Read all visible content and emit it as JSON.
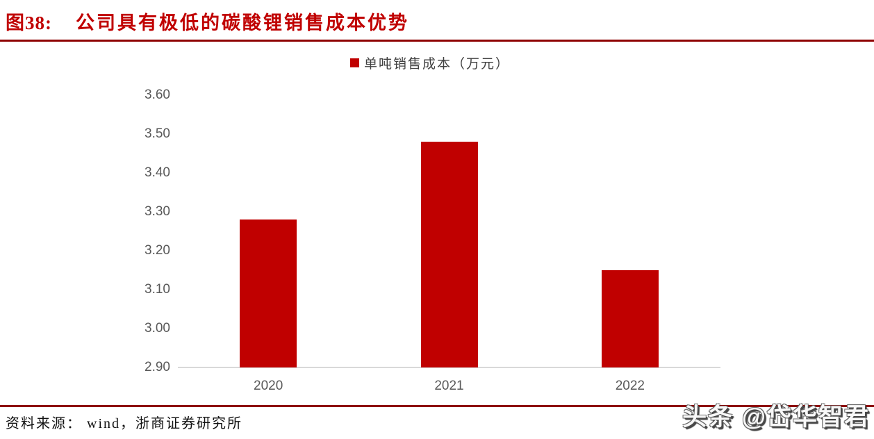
{
  "figure": {
    "label": "图38:",
    "title": "公司具有极低的碳酸锂销售成本优势",
    "source": "资料来源： wind，浙商证券研究所",
    "watermark": "头条 @岱华智君"
  },
  "chart_data": {
    "type": "bar",
    "title": "单吨销售成本（万元）",
    "legend": [
      "单吨销售成本（万元）"
    ],
    "legend_position": "top-center",
    "categories": [
      "2020",
      "2021",
      "2022"
    ],
    "values": [
      3.28,
      3.48,
      3.15
    ],
    "xlabel": "",
    "ylabel": "",
    "ylim": [
      2.9,
      3.6
    ],
    "ytick_step": 0.1,
    "yticks": [
      "3.60",
      "3.50",
      "3.40",
      "3.30",
      "3.20",
      "3.10",
      "3.00",
      "2.90"
    ],
    "grid": false,
    "bar_color": "#c00000"
  },
  "colors": {
    "accent_red": "#c00000",
    "rule_red": "#8e0000",
    "axis_text": "#595959",
    "legend_text": "#404040",
    "baseline_gray": "#d9d9d9",
    "source_text": "#111111",
    "watermark_fill": "#f8f8f8",
    "watermark_outline": "#4a4a4a"
  }
}
